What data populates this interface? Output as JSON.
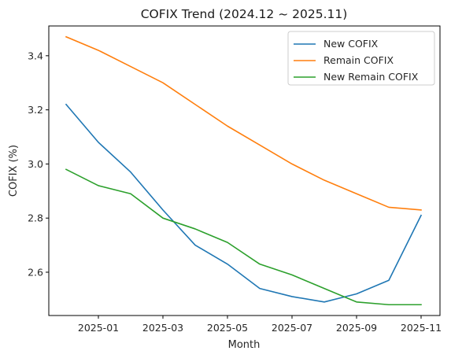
{
  "chart_data": {
    "type": "line",
    "title": "COFIX Trend (2024.12 ~ 2025.11)",
    "xlabel": "Month",
    "ylabel": "COFIX (%)",
    "x": [
      "2024-12",
      "2025-01",
      "2025-02",
      "2025-03",
      "2025-04",
      "2025-05",
      "2025-06",
      "2025-07",
      "2025-08",
      "2025-09",
      "2025-10",
      "2025-11"
    ],
    "x_tick_labels": [
      "2025-01",
      "2025-03",
      "2025-05",
      "2025-07",
      "2025-09",
      "2025-11"
    ],
    "y_ticks": [
      2.6,
      2.8,
      3.0,
      3.2,
      3.4
    ],
    "ylim": [
      2.44,
      3.51
    ],
    "grid": false,
    "legend_position": "top-right",
    "series": [
      {
        "name": "New COFIX",
        "color": "#1f77b4",
        "values": [
          3.22,
          3.08,
          2.97,
          2.83,
          2.7,
          2.63,
          2.54,
          2.51,
          2.49,
          2.52,
          2.57,
          2.81
        ]
      },
      {
        "name": "Remain COFIX",
        "color": "#ff7f0e",
        "values": [
          3.47,
          3.42,
          3.36,
          3.3,
          3.22,
          3.14,
          3.07,
          3.0,
          2.94,
          2.89,
          2.84,
          2.83
        ]
      },
      {
        "name": "New Remain COFIX",
        "color": "#2ca02c",
        "values": [
          2.98,
          2.92,
          2.89,
          2.8,
          2.76,
          2.71,
          2.63,
          2.59,
          2.54,
          2.49,
          2.48,
          2.48
        ]
      }
    ]
  }
}
